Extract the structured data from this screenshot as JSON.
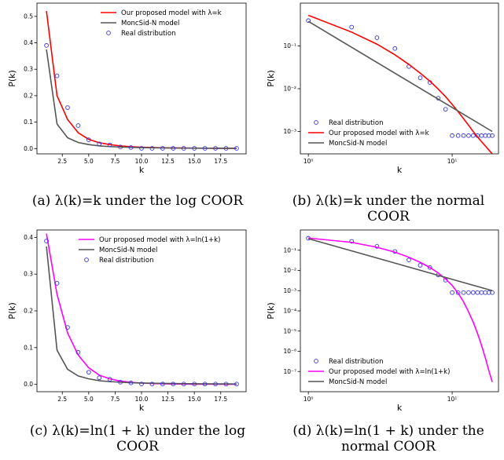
{
  "chart_data": [
    {
      "id": "a",
      "type": "line",
      "yscale": "linear",
      "xlabel": "k",
      "ylabel": "P(k)",
      "xlim": [
        0.1,
        19.9
      ],
      "ylim": [
        -0.02,
        0.55
      ],
      "xticks": [
        2.5,
        5.0,
        7.5,
        10.0,
        12.5,
        15.0,
        17.5
      ],
      "xtick_labels": [
        "2.5",
        "5.0",
        "7.5",
        "10.0",
        "12.5",
        "15.0",
        "17.5"
      ],
      "yticks": [
        0.0,
        0.1,
        0.2,
        0.3,
        0.4,
        0.5
      ],
      "ytick_labels": [
        "0.0",
        "0.1",
        "0.2",
        "0.3",
        "0.4",
        "0.5"
      ],
      "legend_position": "top-right",
      "series": [
        {
          "name": "Our proposed model with λ=k",
          "kind": "line",
          "color": "#ff0000",
          "x": [
            1,
            2,
            3,
            4,
            5,
            6,
            7,
            8,
            9,
            10,
            11,
            12,
            13,
            14,
            15,
            16,
            17,
            18,
            19
          ],
          "y": [
            0.52,
            0.2,
            0.11,
            0.06,
            0.035,
            0.022,
            0.015,
            0.01,
            0.007,
            0.005,
            0.004,
            0.003,
            0.0025,
            0.002,
            0.0015,
            0.0012,
            0.001,
            0.0009,
            0.0008
          ]
        },
        {
          "name": "MoncSid-N model",
          "kind": "line",
          "color": "#555555",
          "x": [
            1,
            2,
            3,
            4,
            5,
            6,
            7,
            8,
            9,
            10,
            11,
            12,
            13,
            14,
            15,
            16,
            17,
            18,
            19
          ],
          "y": [
            0.375,
            0.093,
            0.041,
            0.023,
            0.015,
            0.01,
            0.0075,
            0.006,
            0.0045,
            0.0037,
            0.003,
            0.0026,
            0.0022,
            0.0019,
            0.0017,
            0.0015,
            0.0013,
            0.0012,
            0.001
          ]
        },
        {
          "name": "Real distribution",
          "kind": "scatter",
          "color": "#3333dd",
          "x": [
            1,
            2,
            3,
            4,
            5,
            6,
            7,
            8,
            9,
            10,
            11,
            12,
            13,
            14,
            15,
            16,
            17,
            18,
            19
          ],
          "y": [
            0.39,
            0.275,
            0.155,
            0.087,
            0.033,
            0.018,
            0.014,
            0.006,
            0.004,
            0.001,
            0.0008,
            0.0008,
            0.0008,
            0.0008,
            0.0008,
            0.0008,
            0.0008,
            0.0008,
            0.0008
          ]
        }
      ]
    },
    {
      "id": "b",
      "type": "line",
      "yscale": "log",
      "xscale": "log",
      "xlabel": "k",
      "ylabel": "P(k)",
      "xlim": [
        0.88,
        21
      ],
      "ylim": [
        0.0003,
        1
      ],
      "xticks": [
        1,
        10
      ],
      "xtick_labels": [
        "10⁰",
        "10¹"
      ],
      "yticks": [
        0.001,
        0.01,
        0.1
      ],
      "ytick_labels": [
        "10⁻³",
        "10⁻²",
        "10⁻¹"
      ],
      "legend_position": "lower-left",
      "series": [
        {
          "name": "Real distribution",
          "kind": "scatter",
          "color": "#3333dd",
          "x": [
            1,
            2,
            3,
            4,
            5,
            6,
            7,
            8,
            9,
            10,
            11,
            12,
            13,
            14,
            15,
            16,
            17,
            18,
            19
          ],
          "y": [
            0.39,
            0.275,
            0.155,
            0.087,
            0.033,
            0.018,
            0.014,
            0.006,
            0.0033,
            0.0008,
            0.0008,
            0.0008,
            0.0008,
            0.0008,
            0.0008,
            0.0008,
            0.0008,
            0.0008,
            0.0008
          ]
        },
        {
          "name": "Our proposed model with λ=k",
          "kind": "line",
          "color": "#ff0000",
          "x": [
            1,
            2,
            3,
            4,
            5,
            6,
            7,
            8,
            9,
            10,
            11,
            12,
            13,
            14,
            15,
            16,
            17,
            18,
            19
          ],
          "y": [
            0.52,
            0.21,
            0.11,
            0.062,
            0.037,
            0.023,
            0.015,
            0.0098,
            0.0065,
            0.0043,
            0.0029,
            0.002,
            0.0014,
            0.001,
            0.00075,
            0.00058,
            0.00046,
            0.00037,
            0.0003
          ]
        },
        {
          "name": "MoncSid-N model",
          "kind": "line",
          "color": "#555555",
          "x": [
            1,
            19
          ],
          "y": [
            0.375,
            0.001
          ]
        }
      ]
    },
    {
      "id": "c",
      "type": "line",
      "yscale": "linear",
      "xlabel": "k",
      "ylabel": "P(k)",
      "xlim": [
        0.1,
        19.9
      ],
      "ylim": [
        -0.02,
        0.42
      ],
      "xticks": [
        2.5,
        5.0,
        7.5,
        10.0,
        12.5,
        15.0,
        17.5
      ],
      "xtick_labels": [
        "2.5",
        "5.0",
        "7.5",
        "10.0",
        "12.5",
        "15.0",
        "17.5"
      ],
      "yticks": [
        0.0,
        0.1,
        0.2,
        0.3,
        0.4
      ],
      "ytick_labels": [
        "0.0",
        "0.1",
        "0.2",
        "0.3",
        "0.4"
      ],
      "legend_position": "top-right",
      "series": [
        {
          "name": "Our proposed model with λ=ln(1+k)",
          "kind": "line",
          "color": "#ff00ff",
          "x": [
            1,
            2,
            3,
            4,
            5,
            6,
            7,
            8,
            9,
            10,
            11,
            12,
            13,
            14,
            15,
            16,
            17,
            18,
            19
          ],
          "y": [
            0.41,
            0.245,
            0.14,
            0.08,
            0.045,
            0.025,
            0.015,
            0.009,
            0.0055,
            0.0035,
            0.0023,
            0.0015,
            0.001,
            0.0007,
            0.0005,
            0.0004,
            0.0003,
            0.0002,
            0.0002
          ]
        },
        {
          "name": "MoncSid-N model",
          "kind": "line",
          "color": "#555555",
          "x": [
            1,
            2,
            3,
            4,
            5,
            6,
            7,
            8,
            9,
            10,
            11,
            12,
            13,
            14,
            15,
            16,
            17,
            18,
            19
          ],
          "y": [
            0.375,
            0.093,
            0.041,
            0.023,
            0.015,
            0.01,
            0.0075,
            0.006,
            0.0045,
            0.0037,
            0.003,
            0.0026,
            0.0022,
            0.0019,
            0.0017,
            0.0015,
            0.0013,
            0.0012,
            0.001
          ]
        },
        {
          "name": "Real distribution",
          "kind": "scatter",
          "color": "#3333dd",
          "x": [
            1,
            2,
            3,
            4,
            5,
            6,
            7,
            8,
            9,
            10,
            11,
            12,
            13,
            14,
            15,
            16,
            17,
            18,
            19
          ],
          "y": [
            0.39,
            0.275,
            0.155,
            0.087,
            0.033,
            0.018,
            0.014,
            0.006,
            0.004,
            0.001,
            0.0008,
            0.0008,
            0.0008,
            0.0008,
            0.0008,
            0.0008,
            0.0008,
            0.0008,
            0.0008
          ]
        }
      ]
    },
    {
      "id": "d",
      "type": "line",
      "yscale": "log",
      "xscale": "log",
      "xlabel": "k",
      "ylabel": "P(k)",
      "xlim": [
        0.88,
        21
      ],
      "ylim": [
        1e-08,
        1
      ],
      "xticks": [
        1,
        10
      ],
      "xtick_labels": [
        "10⁰",
        "10¹"
      ],
      "yticks": [
        1e-07,
        1e-06,
        1e-05,
        0.0001,
        0.001,
        0.01,
        0.1
      ],
      "ytick_labels": [
        "10⁻⁷",
        "10⁻⁶",
        "10⁻⁵",
        "10⁻⁴",
        "10⁻³",
        "10⁻²",
        "10⁻¹"
      ],
      "legend_position": "lower-left",
      "series": [
        {
          "name": "Real distribution",
          "kind": "scatter",
          "color": "#3333dd",
          "x": [
            1,
            2,
            3,
            4,
            5,
            6,
            7,
            8,
            9,
            10,
            11,
            12,
            13,
            14,
            15,
            16,
            17,
            18,
            19
          ],
          "y": [
            0.39,
            0.275,
            0.155,
            0.087,
            0.033,
            0.018,
            0.014,
            0.006,
            0.0033,
            0.0008,
            0.0008,
            0.0008,
            0.0008,
            0.0008,
            0.0008,
            0.0008,
            0.0008,
            0.0008,
            0.0008
          ]
        },
        {
          "name": "Our proposed model with λ=ln(1+k)",
          "kind": "line",
          "color": "#ff00ff",
          "x": [
            1,
            2,
            3,
            4,
            5,
            6,
            7,
            8,
            9,
            10,
            11,
            12,
            13,
            14,
            15,
            16,
            17,
            18,
            19
          ],
          "y": [
            0.4,
            0.245,
            0.14,
            0.08,
            0.045,
            0.025,
            0.014,
            0.0075,
            0.0038,
            0.0018,
            0.00075,
            0.00028,
            9e-05,
            2.8e-05,
            7.8e-06,
            2e-06,
            4.8e-07,
            1.1e-07,
            3e-08
          ]
        },
        {
          "name": "MoncSid-N model",
          "kind": "line",
          "color": "#555555",
          "x": [
            1,
            19
          ],
          "y": [
            0.375,
            0.001
          ]
        }
      ]
    }
  ],
  "captions": {
    "a": [
      "(a) λ(k)=k under the log COOR"
    ],
    "b": [
      "(b) λ(k)=k under the normal",
      "COOR"
    ],
    "c": [
      "(c) λ(k)=ln(1 + k) under the log",
      "COOR"
    ],
    "d": [
      "(d) λ(k)=ln(1 + k) under the",
      "normal COOR"
    ]
  }
}
